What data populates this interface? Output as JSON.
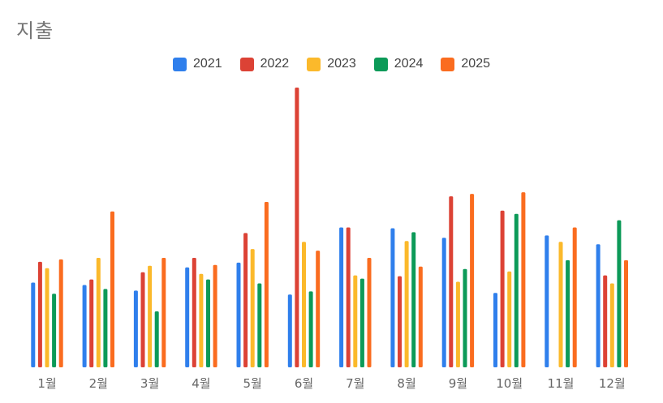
{
  "chart_data": {
    "type": "bar",
    "title": "지출",
    "xlabel": "",
    "ylabel": "",
    "legend_position": "top",
    "grid": false,
    "categories": [
      "1월",
      "2월",
      "3월",
      "4월",
      "5월",
      "6월",
      "7월",
      "8월",
      "9월",
      "10월",
      "11월",
      "12월"
    ],
    "ylim": [
      0,
      350
    ],
    "series": [
      {
        "name": "2021",
        "color": "#2f7fec",
        "values": [
          106,
          103,
          96,
          125,
          131,
          91,
          175,
          174,
          162,
          93,
          165,
          154
        ]
      },
      {
        "name": "2022",
        "color": "#dc4235",
        "values": [
          132,
          110,
          119,
          137,
          168,
          350,
          175,
          114,
          214,
          196,
          0,
          115
        ]
      },
      {
        "name": "2023",
        "color": "#fbb92b",
        "values": [
          124,
          137,
          127,
          117,
          148,
          157,
          115,
          158,
          107,
          120,
          157,
          105
        ]
      },
      {
        "name": "2024",
        "color": "#0c9a58",
        "values": [
          92,
          98,
          70,
          110,
          105,
          95,
          111,
          169,
          123,
          192,
          134,
          184
        ]
      },
      {
        "name": "2025",
        "color": "#fa6c1f",
        "values": [
          135,
          195,
          137,
          128,
          207,
          146,
          137,
          126,
          217,
          219,
          175,
          134
        ]
      }
    ]
  }
}
